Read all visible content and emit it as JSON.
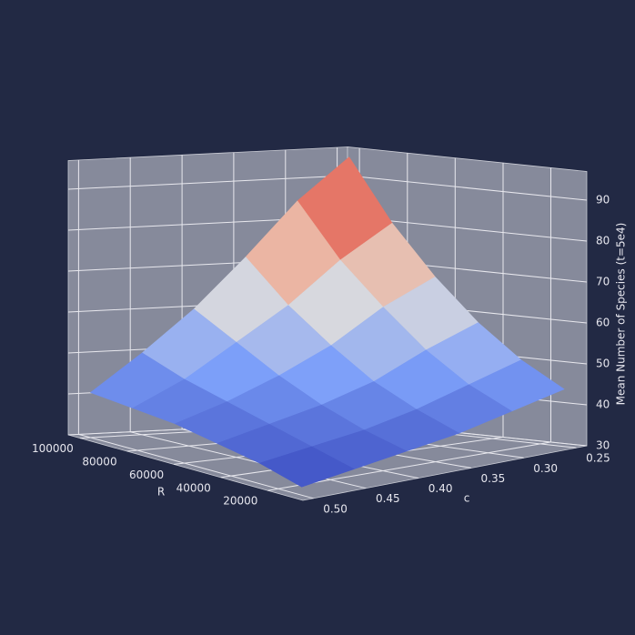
{
  "chart_data": {
    "type": "surface3d",
    "x_label": "R",
    "y_label": "c",
    "z_label": "Mean Number of Species (t=5e4)",
    "x": [
      10000,
      28000,
      46000,
      64000,
      82000,
      100000
    ],
    "y": [
      0.25,
      0.3,
      0.35,
      0.4,
      0.45,
      0.5
    ],
    "z": [
      [
        44,
        50,
        58,
        68,
        80,
        95
      ],
      [
        41,
        46,
        53,
        62,
        72,
        85
      ],
      [
        38,
        42,
        47,
        54,
        62,
        72
      ],
      [
        36,
        39,
        43,
        48,
        54,
        60
      ],
      [
        34,
        37,
        40,
        43,
        46,
        50
      ],
      [
        32,
        35,
        37,
        39,
        40,
        41
      ]
    ],
    "xlim": [
      5000,
      105000
    ],
    "ylim": [
      0.24,
      0.51
    ],
    "zlim": [
      30,
      97
    ],
    "xticks": [
      20000,
      40000,
      60000,
      80000,
      100000
    ],
    "yticks": [
      0.25,
      {
        "value": 0.3,
        "label": "0.30"
      },
      0.35,
      {
        "value": 0.4,
        "label": "0.40"
      },
      0.45,
      {
        "value": 0.5,
        "label": "0.50"
      }
    ],
    "zticks": [
      30,
      40,
      50,
      60,
      70,
      80,
      90
    ],
    "colormap": "coolwarm",
    "grid": true
  }
}
